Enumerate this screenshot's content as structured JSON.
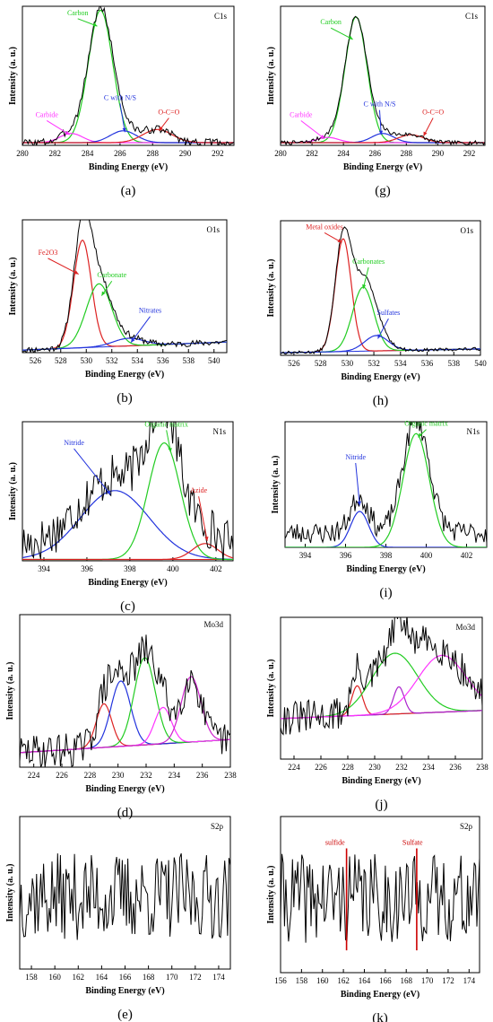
{
  "chart_data": [
    {
      "id": "a",
      "panel_label": "(a)",
      "type": "line",
      "title": "C1s",
      "xlabel": "Binding Energy (eV)",
      "ylabel": "Intensity (a. u.)",
      "xlim": [
        280,
        293
      ],
      "ylim": [
        0,
        1.05
      ],
      "x_ticks": [
        280,
        282,
        284,
        286,
        288,
        290,
        292
      ],
      "series": [
        {
          "name": "Carbon",
          "color": "#22cc22",
          "kind": "gauss",
          "center": 284.8,
          "width": 0.75,
          "height": 1.0
        },
        {
          "name": "Carbide",
          "color": "#ff33ff",
          "kind": "gauss",
          "center": 283.0,
          "width": 0.7,
          "height": 0.07
        },
        {
          "name": "C with N/S",
          "color": "#2233dd",
          "kind": "gauss",
          "center": 286.2,
          "width": 0.8,
          "height": 0.09
        },
        {
          "name": "O-C=O",
          "color": "#dd2222",
          "kind": "gauss",
          "center": 288.3,
          "width": 0.9,
          "height": 0.1
        },
        {
          "kind": "baseline",
          "color": "#444444",
          "level": 0.02
        },
        {
          "kind": "experimental",
          "color": "#000000",
          "noise": 0.03,
          "seed": 3
        }
      ],
      "annotations": [
        {
          "text": "Carbon",
          "color": "#22cc22",
          "text_at": [
            283.4,
            0.97
          ],
          "arrow_to": [
            284.6,
            0.9
          ]
        },
        {
          "text": "Carbide",
          "color": "#ff33ff",
          "text_at": [
            281.5,
            0.2
          ],
          "arrow_to": [
            282.9,
            0.08
          ]
        },
        {
          "text": "C with N/S",
          "color": "#2233dd",
          "text_at": [
            286.0,
            0.33
          ],
          "arrow_to": [
            286.3,
            0.1
          ]
        },
        {
          "text": "O-C=O",
          "color": "#dd2222",
          "text_at": [
            289.0,
            0.22
          ],
          "arrow_to": [
            288.4,
            0.11
          ]
        }
      ]
    },
    {
      "id": "g",
      "panel_label": "(g)",
      "type": "line",
      "title": "C1s",
      "xlabel": "Binding Energy (eV)",
      "ylabel": "Intensity (a. u.)",
      "xlim": [
        280,
        293
      ],
      "ylim": [
        0,
        1.05
      ],
      "x_ticks": [
        280,
        282,
        284,
        286,
        288,
        290,
        292
      ],
      "series": [
        {
          "name": "Carbon",
          "color": "#22cc22",
          "kind": "gauss",
          "center": 284.8,
          "width": 0.7,
          "height": 0.95
        },
        {
          "name": "Carbide",
          "color": "#ff33ff",
          "kind": "gauss",
          "center": 283.0,
          "width": 0.7,
          "height": 0.04
        },
        {
          "name": "C with N/S",
          "color": "#2233dd",
          "kind": "gauss",
          "center": 286.5,
          "width": 0.7,
          "height": 0.07
        },
        {
          "name": "O-C=O",
          "color": "#dd2222",
          "kind": "gauss",
          "center": 288.3,
          "width": 0.8,
          "height": 0.06
        },
        {
          "kind": "baseline",
          "color": "#444444",
          "level": 0.02
        },
        {
          "kind": "experimental",
          "color": "#000000",
          "noise": 0.015,
          "seed": 7
        }
      ],
      "annotations": [
        {
          "text": "Carbon",
          "color": "#22cc22",
          "text_at": [
            283.2,
            0.9
          ],
          "arrow_to": [
            284.6,
            0.8
          ]
        },
        {
          "text": "Carbide",
          "color": "#ff33ff",
          "text_at": [
            281.3,
            0.2
          ],
          "arrow_to": [
            282.8,
            0.05
          ]
        },
        {
          "text": "C with N/S",
          "color": "#2233dd",
          "text_at": [
            286.3,
            0.28
          ],
          "arrow_to": [
            286.4,
            0.08
          ]
        },
        {
          "text": "O-C=O",
          "color": "#dd2222",
          "text_at": [
            289.7,
            0.22
          ],
          "arrow_to": [
            289.1,
            0.07
          ]
        }
      ]
    },
    {
      "id": "b",
      "panel_label": "(b)",
      "type": "line",
      "title": "O1s",
      "xlabel": "Binding Energy (eV)",
      "ylabel": "Intensity (a. u.)",
      "xlim": [
        525,
        541
      ],
      "ylim": [
        0,
        1.05
      ],
      "x_ticks": [
        526,
        528,
        530,
        532,
        534,
        536,
        538,
        540
      ],
      "series": [
        {
          "name": "Fe2O3",
          "color": "#dd2222",
          "kind": "gauss",
          "center": 529.7,
          "width": 0.7,
          "height": 0.85
        },
        {
          "name": "Carbonate",
          "color": "#22cc22",
          "kind": "gauss",
          "center": 531.0,
          "width": 1.0,
          "height": 0.5
        },
        {
          "name": "Nitrates",
          "color": "#2233dd",
          "kind": "gauss",
          "center": 533.3,
          "width": 1.2,
          "height": 0.06
        },
        {
          "kind": "baseline",
          "color": "#2233dd",
          "level": 0.02,
          "slope": 0.004
        },
        {
          "kind": "experimental",
          "color": "#000000",
          "noise": 0.025,
          "seed": 11
        }
      ],
      "annotations": [
        {
          "text": "Fe2O3",
          "color": "#dd2222",
          "text_at": [
            527.0,
            0.76
          ],
          "arrow_to": [
            529.4,
            0.62
          ]
        },
        {
          "text": "Carbonate",
          "color": "#22cc22",
          "text_at": [
            532.0,
            0.58
          ],
          "arrow_to": [
            531.2,
            0.45
          ]
        },
        {
          "text": "Nitrates",
          "color": "#2233dd",
          "text_at": [
            535.0,
            0.3
          ],
          "arrow_to": [
            533.5,
            0.08
          ]
        }
      ]
    },
    {
      "id": "h",
      "panel_label": "(h)",
      "type": "line",
      "title": "O1s",
      "xlabel": "Binding Energy (eV)",
      "ylabel": "Intensity (a. u.)",
      "xlim": [
        525,
        540
      ],
      "ylim": [
        0,
        1.05
      ],
      "x_ticks": [
        526,
        528,
        530,
        532,
        534,
        536,
        538,
        540
      ],
      "series": [
        {
          "name": "Metal oxides",
          "color": "#dd2222",
          "kind": "gauss",
          "center": 529.7,
          "width": 0.6,
          "height": 0.88
        },
        {
          "name": "Carbonates",
          "color": "#22cc22",
          "kind": "gauss",
          "center": 531.2,
          "width": 0.8,
          "height": 0.5
        },
        {
          "name": "Sulfates",
          "color": "#2233dd",
          "kind": "gauss",
          "center": 532.2,
          "width": 0.9,
          "height": 0.12
        },
        {
          "kind": "baseline",
          "color": "#2233dd",
          "level": 0.02,
          "slope": 0.002
        },
        {
          "kind": "experimental",
          "color": "#000000",
          "noise": 0.012,
          "seed": 13
        }
      ],
      "annotations": [
        {
          "text": "Metal oxides",
          "color": "#dd2222",
          "text_at": [
            528.3,
            0.97
          ],
          "arrow_to": [
            529.6,
            0.88
          ]
        },
        {
          "text": "Carbonates",
          "color": "#22cc22",
          "text_at": [
            531.6,
            0.7
          ],
          "arrow_to": [
            531.2,
            0.52
          ]
        },
        {
          "text": "Sulfates",
          "color": "#2233dd",
          "text_at": [
            533.1,
            0.3
          ],
          "arrow_to": [
            532.3,
            0.13
          ]
        }
      ]
    },
    {
      "id": "c",
      "panel_label": "(c)",
      "type": "line",
      "title": "N1s",
      "xlabel": "Binding Energy (eV)",
      "ylabel": "Intensity (a. u.)",
      "xlim": [
        393,
        402.8
      ],
      "ylim": [
        0,
        1.05
      ],
      "x_ticks": [
        394,
        396,
        398,
        400,
        402
      ],
      "series": [
        {
          "name": "Nitride",
          "color": "#2233dd",
          "kind": "gauss",
          "center": 397.3,
          "width": 1.6,
          "height": 0.52
        },
        {
          "name": "Organic matrix",
          "color": "#22cc22",
          "kind": "gauss",
          "center": 399.6,
          "width": 0.75,
          "height": 0.88
        },
        {
          "name": "Azide",
          "color": "#dd2222",
          "kind": "gauss",
          "center": 401.5,
          "width": 0.6,
          "height": 0.12
        },
        {
          "kind": "baseline",
          "color": "#dd2222",
          "level": 0.01
        },
        {
          "kind": "experimental",
          "color": "#000000",
          "noise": 0.17,
          "seed": 17,
          "offset": 0.1
        }
      ],
      "annotations": [
        {
          "text": "Nitride",
          "color": "#2233dd",
          "text_at": [
            395.4,
            0.86
          ],
          "arrow_to": [
            397.1,
            0.5
          ]
        },
        {
          "text": "Organic matrix",
          "color": "#22cc22",
          "text_at": [
            399.7,
            1.0
          ],
          "arrow_to": [
            399.9,
            0.82
          ]
        },
        {
          "text": "Azide",
          "color": "#dd2222",
          "text_at": [
            401.2,
            0.5
          ],
          "arrow_to": [
            401.6,
            0.15
          ]
        }
      ]
    },
    {
      "id": "i",
      "panel_label": "(i)",
      "type": "line",
      "title": "N1s",
      "xlabel": "Binding Energy (eV)",
      "ylabel": "Intensity (a. u.)",
      "xlim": [
        393,
        403
      ],
      "ylim": [
        0,
        1.05
      ],
      "x_ticks": [
        394,
        396,
        398,
        400,
        402
      ],
      "series": [
        {
          "name": "Nitride",
          "color": "#2233dd",
          "kind": "gauss",
          "center": 396.7,
          "width": 0.45,
          "height": 0.3
        },
        {
          "name": "Organic matrix",
          "color": "#22cc22",
          "kind": "gauss",
          "center": 399.5,
          "width": 0.65,
          "height": 0.95
        },
        {
          "kind": "baseline",
          "color": "#22cc22",
          "level": 0.0
        },
        {
          "kind": "experimental",
          "color": "#000000",
          "noise": 0.09,
          "seed": 23,
          "offset": 0.12
        }
      ],
      "annotations": [
        {
          "text": "Nitride",
          "color": "#2233dd",
          "text_at": [
            396.5,
            0.72
          ],
          "arrow_to": [
            396.7,
            0.35
          ]
        },
        {
          "text": "Organic matrix",
          "color": "#22cc22",
          "text_at": [
            400.0,
            1.0
          ],
          "arrow_to": [
            399.6,
            0.92
          ]
        }
      ]
    },
    {
      "id": "d",
      "panel_label": "(d)",
      "type": "line",
      "title": "Mo3d",
      "xlabel": "Binding Energy (eV)",
      "ylabel": "Intensity (a. u.)",
      "xlim": [
        223,
        238
      ],
      "ylim": [
        0,
        1.05
      ],
      "x_ticks": [
        224,
        226,
        228,
        230,
        232,
        234,
        236,
        238
      ],
      "series": [
        {
          "kind": "gauss",
          "color": "#dd2222",
          "center": 229.0,
          "width": 0.55,
          "height": 0.3
        },
        {
          "kind": "gauss",
          "color": "#2233dd",
          "center": 230.2,
          "width": 0.7,
          "height": 0.45
        },
        {
          "kind": "gauss",
          "color": "#22cc22",
          "center": 231.9,
          "width": 0.75,
          "height": 0.6
        },
        {
          "kind": "gauss",
          "color": "#ff33ff",
          "center": 233.2,
          "width": 0.6,
          "height": 0.25
        },
        {
          "kind": "gauss",
          "color": "#cc22cc",
          "center": 235.2,
          "width": 0.7,
          "height": 0.45
        },
        {
          "kind": "baseline",
          "color": "#000000",
          "level": 0.1,
          "slope": 0.006
        },
        {
          "kind": "experimental",
          "color": "#000000",
          "noise": 0.12,
          "seed": 29
        }
      ]
    },
    {
      "id": "j",
      "panel_label": "(j)",
      "type": "line",
      "title": "Mo3d",
      "xlabel": "Binding Energy (eV)",
      "ylabel": "Intensity (a. u.)",
      "xlim": [
        223,
        238
      ],
      "ylim": [
        0,
        1.05
      ],
      "x_ticks": [
        224,
        226,
        228,
        230,
        232,
        234,
        236,
        238
      ],
      "series": [
        {
          "kind": "gauss",
          "color": "#dd2222",
          "center": 228.7,
          "width": 0.4,
          "height": 0.22
        },
        {
          "kind": "gauss",
          "color": "#22cc22",
          "center": 231.5,
          "width": 1.7,
          "height": 0.45
        },
        {
          "kind": "gauss",
          "color": "#aa22cc",
          "center": 231.8,
          "width": 0.4,
          "height": 0.2
        },
        {
          "kind": "gauss",
          "color": "#ff33ff",
          "center": 235.0,
          "width": 1.8,
          "height": 0.42
        },
        {
          "kind": "baseline",
          "color": "#2233dd",
          "level": 0.3,
          "slope": 0.004
        },
        {
          "kind": "experimental",
          "color": "#000000",
          "noise": 0.13,
          "seed": 31
        }
      ]
    },
    {
      "id": "e",
      "panel_label": "(e)",
      "type": "line",
      "title": "S2p",
      "xlabel": "Binding Energy (eV)",
      "ylabel": "Intensity (a. u.)",
      "xlim": [
        157,
        175
      ],
      "ylim": [
        0,
        1.05
      ],
      "x_ticks": [
        158,
        160,
        162,
        164,
        166,
        168,
        170,
        172,
        174
      ],
      "series": [
        {
          "kind": "experimental",
          "color": "#000000",
          "noise": 0.3,
          "seed": 37,
          "offset": 0.5
        }
      ]
    },
    {
      "id": "k",
      "panel_label": "(k)",
      "type": "line",
      "title": "S2p",
      "xlabel": "Binding Energy (eV)",
      "ylabel": "Intensity (a. u.)",
      "xlim": [
        156,
        175
      ],
      "ylim": [
        0,
        1.05
      ],
      "x_ticks": [
        156,
        158,
        160,
        162,
        164,
        166,
        168,
        170,
        172,
        174
      ],
      "series": [
        {
          "kind": "experimental",
          "color": "#000000",
          "noise": 0.3,
          "seed": 41,
          "offset": 0.5
        }
      ],
      "markers": [
        {
          "text": "sulfide",
          "color": "#cc0000",
          "x": 162.3,
          "text_at": [
            161.2,
            0.86
          ]
        },
        {
          "text": "Sulfate",
          "color": "#cc0000",
          "x": 169.0,
          "text_at": [
            168.6,
            0.86
          ]
        }
      ]
    }
  ]
}
